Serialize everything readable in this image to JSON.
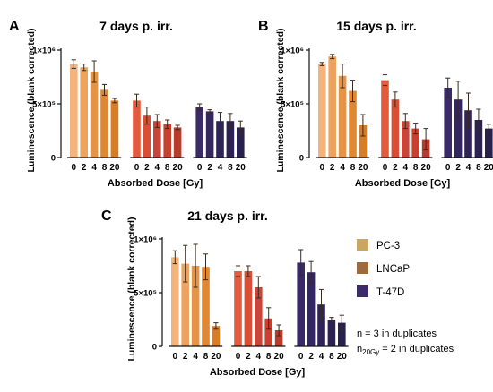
{
  "colors": {
    "PC-3": [
      "#f3b37a",
      "#eda35e",
      "#e69345",
      "#df8733",
      "#d97c26"
    ],
    "LNCaP": [
      "#e35b3c",
      "#d84f35",
      "#c9453a",
      "#c9402f",
      "#ba3a2b"
    ],
    "T-47D": [
      "#3a2a67",
      "#34275f",
      "#2f2458",
      "#2b2152",
      "#28214d"
    ],
    "error_bar": "#3a2a1c",
    "axis": "#111111",
    "legend_swatch_PC-3": "#c9a760",
    "legend_swatch_LNCaP": "#9c6b3d",
    "legend_swatch_T-47D": "#3b2b66"
  },
  "legend": {
    "entries": [
      "PC-3",
      "LNCaP",
      "T-47D"
    ],
    "note_line1": "n = 3 in duplicates",
    "note_line2_base": "n",
    "note_line2_sub": "20Gy",
    "note_line2_rest": " = 2 in duplicates"
  },
  "chart_data": [
    {
      "panel": "A",
      "type": "bar",
      "title": "7 days p. irr.",
      "xlabel": "Absorbed Dose [Gy]",
      "ylabel": "Luminescence (blank corrected)",
      "ylim": [
        0,
        1000000
      ],
      "yticks": [
        {
          "value": 0,
          "label": "0"
        },
        {
          "value": 500000,
          "label": "5×10⁵"
        },
        {
          "value": 1000000,
          "label": "1×10⁶"
        }
      ],
      "categories": [
        "0",
        "2",
        "4",
        "8",
        "20"
      ],
      "series": [
        {
          "name": "PC-3",
          "values": [
            870000,
            840000,
            800000,
            630000,
            530000
          ],
          "errors": [
            40000,
            30000,
            100000,
            50000,
            20000
          ]
        },
        {
          "name": "LNCaP",
          "values": [
            530000,
            390000,
            340000,
            310000,
            280000
          ],
          "errors": [
            60000,
            80000,
            60000,
            40000,
            20000
          ]
        },
        {
          "name": "T-47D",
          "values": [
            470000,
            430000,
            340000,
            340000,
            280000
          ],
          "errors": [
            30000,
            15000,
            80000,
            70000,
            60000
          ]
        }
      ]
    },
    {
      "panel": "B",
      "type": "bar",
      "title": "15 days p. irr.",
      "xlabel": "Absorbed Dose [Gy]",
      "ylabel": "Luminescence (blank corrected)",
      "ylim": [
        0,
        1000000
      ],
      "yticks": [
        {
          "value": 0,
          "label": "0"
        },
        {
          "value": 500000,
          "label": "5×10⁵"
        },
        {
          "value": 1000000,
          "label": "1×10⁶"
        }
      ],
      "categories": [
        "0",
        "2",
        "4",
        "8",
        "20"
      ],
      "series": [
        {
          "name": "PC-3",
          "values": [
            870000,
            940000,
            760000,
            620000,
            300000
          ],
          "errors": [
            15000,
            20000,
            110000,
            100000,
            100000
          ]
        },
        {
          "name": "LNCaP",
          "values": [
            720000,
            540000,
            340000,
            270000,
            170000
          ],
          "errors": [
            50000,
            70000,
            70000,
            50000,
            100000
          ]
        },
        {
          "name": "T-47D",
          "values": [
            650000,
            540000,
            440000,
            350000,
            270000
          ],
          "errors": [
            90000,
            170000,
            160000,
            100000,
            40000
          ]
        }
      ]
    },
    {
      "panel": "C",
      "type": "bar",
      "title": "21 days p. irr.",
      "xlabel": "Absorbed Dose [Gy]",
      "ylabel": "Luminescence (blank corrected)",
      "ylim": [
        0,
        1000000
      ],
      "yticks": [
        {
          "value": 0,
          "label": "0"
        },
        {
          "value": 500000,
          "label": "5×10⁵"
        },
        {
          "value": 1000000,
          "label": "1×10⁶"
        }
      ],
      "categories": [
        "0",
        "2",
        "4",
        "8",
        "20"
      ],
      "series": [
        {
          "name": "PC-3",
          "values": [
            830000,
            770000,
            750000,
            740000,
            190000
          ],
          "errors": [
            60000,
            170000,
            200000,
            120000,
            30000
          ]
        },
        {
          "name": "LNCaP",
          "values": [
            700000,
            700000,
            550000,
            260000,
            150000
          ],
          "errors": [
            50000,
            50000,
            100000,
            100000,
            50000
          ]
        },
        {
          "name": "T-47D",
          "values": [
            780000,
            690000,
            390000,
            250000,
            220000
          ],
          "errors": [
            120000,
            100000,
            140000,
            20000,
            70000
          ]
        }
      ]
    }
  ]
}
